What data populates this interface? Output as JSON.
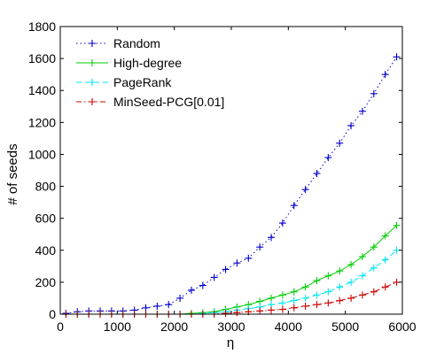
{
  "chart_data": {
    "type": "line",
    "xlabel": "η",
    "ylabel": "# of seeds",
    "xlim": [
      0,
      6000
    ],
    "ylim": [
      0,
      1800
    ],
    "xticks": [
      "0",
      "1000",
      "2000",
      "3000",
      "4000",
      "5000",
      "6000"
    ],
    "yticks": [
      "0",
      "200",
      "400",
      "600",
      "800",
      "1000",
      "1200",
      "1400",
      "1600",
      "1800"
    ],
    "grid": false,
    "legend_position": "top-left",
    "x": [
      100,
      300,
      500,
      700,
      900,
      1100,
      1300,
      1500,
      1700,
      1900,
      2100,
      2300,
      2500,
      2700,
      2900,
      3100,
      3300,
      3500,
      3700,
      3900,
      4100,
      4300,
      4500,
      4700,
      4900,
      5100,
      5300,
      5500,
      5700,
      5900
    ],
    "series": [
      {
        "name": "Random",
        "color": "#0000cc",
        "line_style": "dotted",
        "marker": "plus",
        "values": [
          5,
          15,
          20,
          20,
          20,
          20,
          25,
          40,
          50,
          60,
          100,
          150,
          180,
          230,
          280,
          320,
          350,
          420,
          480,
          570,
          680,
          780,
          880,
          980,
          1070,
          1180,
          1270,
          1380,
          1500,
          1610
        ]
      },
      {
        "name": "High-degree",
        "color": "#00cc00",
        "line_style": "solid",
        "marker": "plus",
        "values": [
          0,
          0,
          0,
          0,
          0,
          0,
          0,
          0,
          0,
          0,
          0,
          5,
          10,
          15,
          30,
          45,
          60,
          80,
          100,
          120,
          140,
          170,
          210,
          240,
          270,
          310,
          360,
          420,
          490,
          555
        ]
      },
      {
        "name": "PageRank",
        "color": "#00e5ee",
        "line_style": "dashed",
        "marker": "plus",
        "values": [
          0,
          0,
          0,
          0,
          0,
          0,
          0,
          0,
          0,
          0,
          0,
          0,
          5,
          10,
          15,
          25,
          35,
          45,
          60,
          70,
          85,
          100,
          120,
          140,
          170,
          200,
          240,
          290,
          340,
          400
        ]
      },
      {
        "name": "MinSeed-PCG[0.01]",
        "color": "#cc0000",
        "line_style": "dashdot",
        "marker": "plus",
        "values": [
          0,
          0,
          0,
          0,
          0,
          0,
          0,
          0,
          0,
          0,
          0,
          0,
          0,
          0,
          5,
          10,
          15,
          20,
          25,
          30,
          40,
          50,
          60,
          70,
          85,
          100,
          120,
          140,
          170,
          200
        ]
      }
    ]
  }
}
